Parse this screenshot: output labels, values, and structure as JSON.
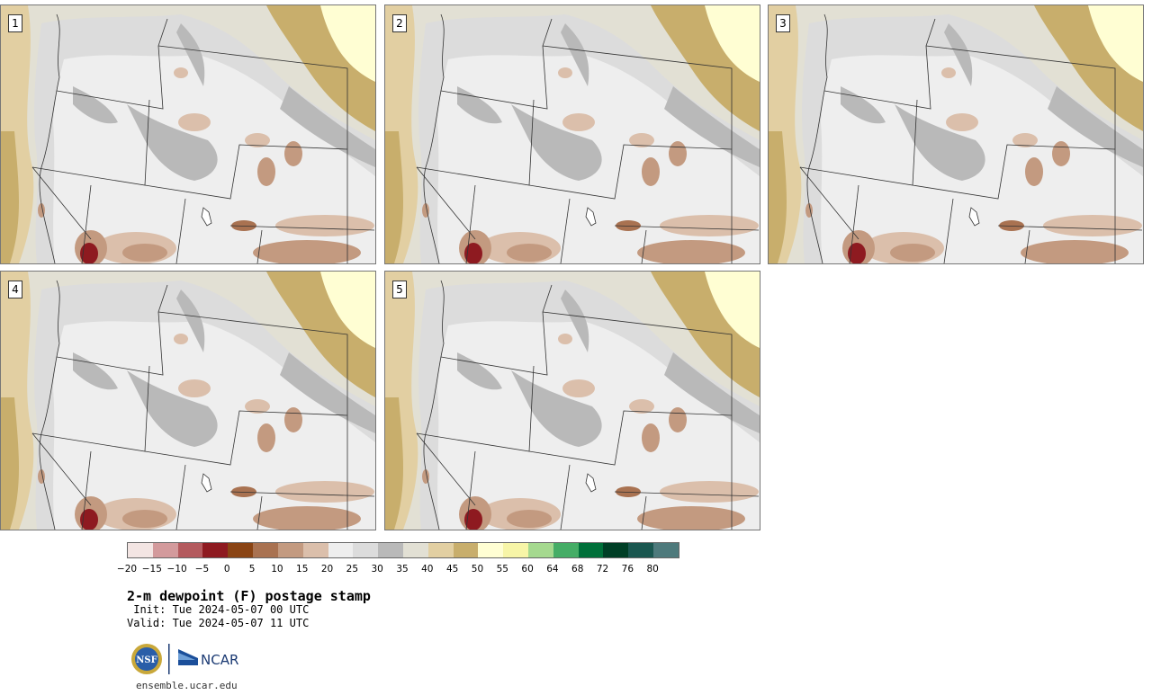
{
  "panels": [
    {
      "label": "1"
    },
    {
      "label": "2"
    },
    {
      "label": "3"
    },
    {
      "label": "4"
    },
    {
      "label": "5"
    }
  ],
  "legend": {
    "colors": [
      "#f3e5e3",
      "#d39a9c",
      "#b45a5e",
      "#8e1a20",
      "#8a4414",
      "#a97251",
      "#c39a80",
      "#dbbfab",
      "#eeeeee",
      "#dcdcdc",
      "#b9b9b9",
      "#e2e0d4",
      "#e2cfa2",
      "#c8ae6c",
      "#fffed3",
      "#f7f5a7",
      "#a5d98f",
      "#45ad66",
      "#00703a",
      "#003f26",
      "#1a5750",
      "#4e7a7c"
    ],
    "ticks": [
      "−20",
      "−15",
      "−10",
      "−5",
      "0",
      "5",
      "10",
      "15",
      "20",
      "25",
      "30",
      "35",
      "40",
      "45",
      "50",
      "55",
      "60",
      "64",
      "68",
      "72",
      "76",
      "80"
    ]
  },
  "title": "2-m dewpoint (F) postage stamp",
  "init": " Init: Tue 2024-05-07 00 UTC",
  "valid": "Valid: Tue 2024-05-07 11 UTC",
  "logos": {
    "nsf": "NSF",
    "ncar": "NCAR"
  },
  "site": "ensemble.ucar.edu"
}
